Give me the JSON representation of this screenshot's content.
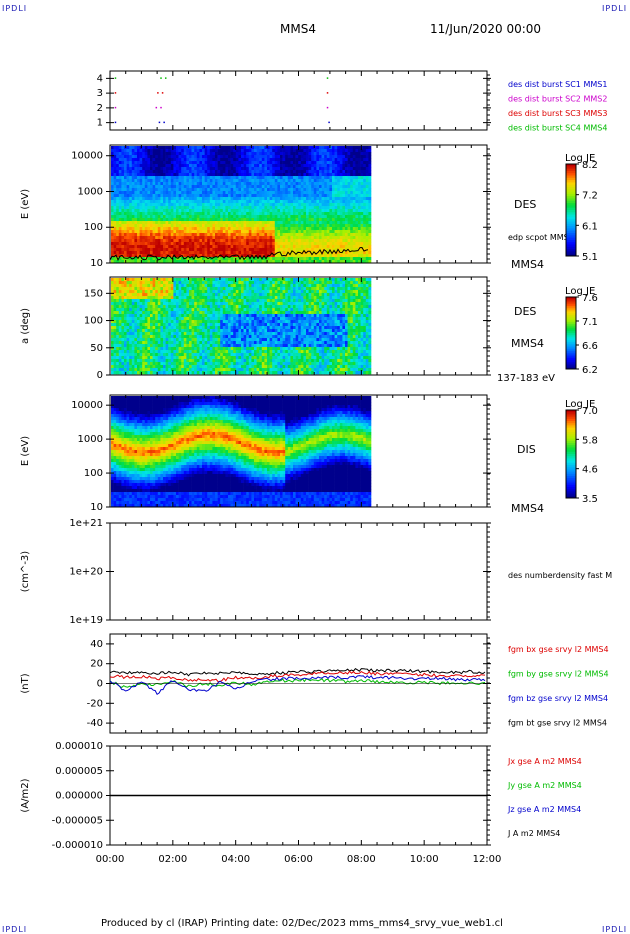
{
  "page": {
    "corner_tl": "IPDLI",
    "corner_tr": "IPDLI",
    "corner_bl": "IPDLI",
    "corner_br": "IPDLI",
    "spacecraft": "MMS4",
    "datetime": "11/Jun/2020 00:00",
    "footer": "Produced by cl (IRAP)   Printing date: 02/Dec/2023   mms_mms4_srvy_vue_web1.cl"
  },
  "colors": {
    "mms1": "#0000cc",
    "mms2": "#cc00cc",
    "mms3": "#dd0000",
    "mms4": "#00bb00",
    "black": "#000000",
    "by": "#00bb00",
    "bx": "#dd0000",
    "bz": "#0000cc"
  },
  "time_axis": {
    "ticks": [
      "00:00",
      "02:00",
      "04:00",
      "06:00",
      "08:00",
      "10:00",
      "12:00"
    ],
    "range_h": [
      0,
      12
    ],
    "data_end_h": 8.25
  },
  "chart_data": [
    {
      "type": "scatter",
      "id": "burst",
      "yticks": [
        "4",
        "3",
        "2",
        "1"
      ],
      "ylim": [
        0.5,
        4.5
      ],
      "legend": [
        {
          "name": "des dist burst SC1 MMS1",
          "color": "#0000cc"
        },
        {
          "name": "des dist burst SC2 MMS2",
          "color": "#cc00cc"
        },
        {
          "name": "des dist burst SC3 MMS3",
          "color": "#dd0000"
        },
        {
          "name": "des dist burst SC4 MMS4",
          "color": "#00bb00"
        }
      ],
      "series": [
        {
          "name": "des dist burst SC4 MMS4",
          "y": 4,
          "x_h": [
            0.15,
            1.6,
            1.75,
            6.9
          ]
        },
        {
          "name": "des dist burst SC3 MMS3",
          "y": 3,
          "x_h": [
            0.15,
            1.5,
            1.65,
            6.9
          ]
        },
        {
          "name": "des dist burst SC2 MMS2",
          "y": 2,
          "x_h": [
            0.15,
            1.45,
            1.6,
            6.9
          ]
        },
        {
          "name": "des dist burst SC1 MMS1",
          "y": 1,
          "x_h": [
            0.15,
            1.55,
            1.7,
            6.95
          ]
        }
      ]
    },
    {
      "type": "heatmap",
      "id": "des_energy",
      "ylabel": "E (eV)",
      "yticks": [
        "10000",
        "1000",
        "100",
        "10"
      ],
      "ylog": [
        1,
        4.3
      ],
      "species": "DES",
      "overlay_label": "edp scpot MMS4",
      "sc_label": "MMS4",
      "colorbar": {
        "title": "Log JE",
        "ticks": [
          "8.2",
          "7.2",
          "6.1",
          "5.1"
        ],
        "range": [
          5.1,
          8.2
        ]
      }
    },
    {
      "type": "heatmap",
      "id": "des_pitch",
      "ylabel": "a (deg)",
      "yticks": [
        "150",
        "100",
        "50",
        "0"
      ],
      "ylim": [
        0,
        180
      ],
      "species": "DES",
      "sc_label": "MMS4",
      "energy_label": "137-183 eV",
      "colorbar": {
        "title": "Log JE",
        "ticks": [
          "7.6",
          "7.1",
          "6.6",
          "6.2"
        ],
        "range": [
          6.2,
          7.6
        ]
      }
    },
    {
      "type": "heatmap",
      "id": "dis_energy",
      "ylabel": "E (eV)",
      "yticks": [
        "10000",
        "1000",
        "100",
        "10"
      ],
      "ylog": [
        1,
        4.3
      ],
      "species": "DIS",
      "sc_label": "MMS4",
      "colorbar": {
        "title": "Log JE",
        "ticks": [
          "7.0",
          "5.8",
          "4.6",
          "3.5"
        ],
        "range": [
          3.5,
          7.0
        ]
      }
    },
    {
      "type": "line",
      "id": "density",
      "ylabel": "(cm^-3)",
      "yticks": [
        "1e+21",
        "1e+20",
        "1e+19"
      ],
      "ylog": [
        19,
        21
      ],
      "legend": [
        {
          "name": "des numberdensity fast M",
          "color": "#000000"
        }
      ]
    },
    {
      "type": "line",
      "id": "fgm",
      "ylabel": "(nT)",
      "yticks": [
        "40",
        "20",
        "0",
        "-20",
        "-40"
      ],
      "ylim": [
        -50,
        50
      ],
      "legend": [
        {
          "name": "fgm bx gse srvy l2 MMS4",
          "color": "#dd0000"
        },
        {
          "name": "fgm by gse srvy l2 MMS4",
          "color": "#00bb00"
        },
        {
          "name": "fgm bz gse srvy l2 MMS4",
          "color": "#0000cc"
        },
        {
          "name": "fgm bt gse srvy l2 MMS4",
          "color": "#000000"
        }
      ],
      "x_h": [
        0,
        0.5,
        1.0,
        1.5,
        2.0,
        2.5,
        3.0,
        3.5,
        4.0,
        4.5,
        5.0,
        5.5,
        6.0,
        6.5,
        7.0,
        7.5,
        8.0,
        8.5,
        9.0,
        9.5,
        10.0,
        10.5,
        11.0,
        11.5,
        12.0
      ],
      "series": [
        {
          "name": "fgm bt gse srvy l2 MMS4",
          "values": [
            12,
            11,
            12,
            10,
            12,
            9,
            11,
            10,
            12,
            9,
            10,
            11,
            12,
            12,
            13,
            13,
            14,
            13,
            13,
            13,
            12,
            12,
            11,
            12,
            11
          ]
        },
        {
          "name": "fgm bx gse srvy l2 MMS4",
          "values": [
            8,
            6,
            7,
            5,
            6,
            3,
            4,
            3,
            6,
            5,
            7,
            8,
            9,
            10,
            11,
            11,
            11,
            10,
            10,
            9,
            9,
            8,
            8,
            8,
            8
          ]
        },
        {
          "name": "fgm by gse srvy l2 MMS4",
          "values": [
            2,
            -4,
            0,
            -1,
            3,
            -3,
            0,
            -2,
            1,
            -1,
            2,
            3,
            3,
            4,
            3,
            2,
            3,
            2,
            1,
            1,
            1,
            0,
            1,
            0,
            1
          ]
        },
        {
          "name": "fgm bz gse srvy l2 MMS4",
          "values": [
            3,
            -8,
            2,
            -10,
            3,
            -6,
            -8,
            1,
            -6,
            2,
            4,
            5,
            5,
            5,
            6,
            6,
            7,
            6,
            6,
            5,
            5,
            5,
            4,
            4,
            4
          ]
        }
      ]
    },
    {
      "type": "line",
      "id": "current",
      "ylabel": "(A/m2)",
      "yticks": [
        "0.000010",
        "0.000005",
        "0.000000",
        "-0.000005",
        "-0.000010"
      ],
      "ylim": [
        -1e-05,
        1e-05
      ],
      "legend": [
        {
          "name": "Jx gse A m2 MMS4",
          "color": "#dd0000"
        },
        {
          "name": "Jy gse A m2 MMS4",
          "color": "#00bb00"
        },
        {
          "name": "Jz gse A m2 MMS4",
          "color": "#0000cc"
        },
        {
          "name": "J A m2 MMS4",
          "color": "#000000"
        }
      ],
      "x_h": [
        0,
        12
      ],
      "series": [
        {
          "name": "J A m2 MMS4",
          "values": [
            0,
            0
          ]
        }
      ]
    }
  ]
}
